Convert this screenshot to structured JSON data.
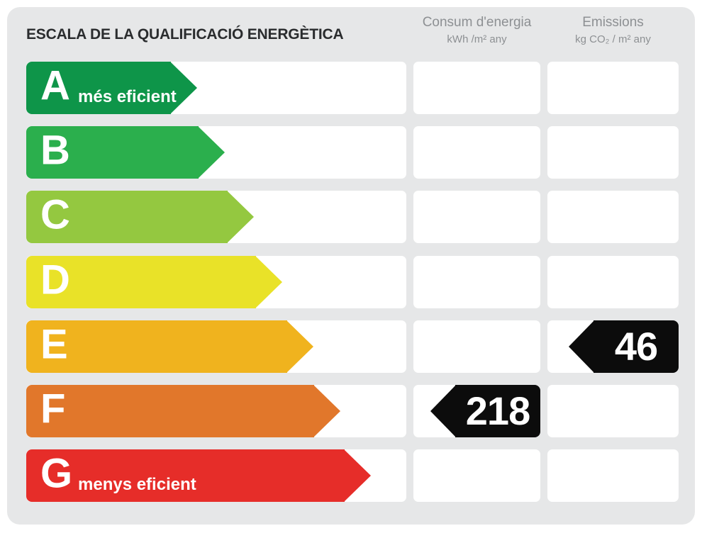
{
  "chart_data": {
    "type": "bar",
    "title": "ESCALA DE LA QUALIFICACIÓ ENERGÈTICA",
    "columns": [
      {
        "id": "consum",
        "label": "Consum d'energia",
        "unit": "kWh /m²  any"
      },
      {
        "id": "emissions",
        "label": "Emissions",
        "unit": "kg CO₂ / m²  any"
      }
    ],
    "categories": [
      "A",
      "B",
      "C",
      "D",
      "E",
      "F",
      "G"
    ],
    "ratings": [
      {
        "letter": "A",
        "note": "més eficient",
        "color": "#0E9549",
        "length": 241
      },
      {
        "letter": "B",
        "note": "",
        "color": "#2BAF4D",
        "length": 280
      },
      {
        "letter": "C",
        "note": "",
        "color": "#94C840",
        "length": 321
      },
      {
        "letter": "D",
        "note": "",
        "color": "#E9E228",
        "length": 361
      },
      {
        "letter": "E",
        "note": "",
        "color": "#F0B31E",
        "length": 405
      },
      {
        "letter": "F",
        "note": "",
        "color": "#E1772B",
        "length": 443
      },
      {
        "letter": "G",
        "note": "menys eficient",
        "color": "#E62D29",
        "length": 486
      }
    ],
    "values": [
      {
        "column": "consum",
        "rating": "F",
        "value": "218"
      },
      {
        "column": "emissions",
        "rating": "E",
        "value": "46"
      }
    ],
    "marker_color": "#0C0C0C",
    "bar_text_color": "#FFFFFF",
    "card_background": "#E6E7E8",
    "header_text_color": "#8D9093"
  }
}
